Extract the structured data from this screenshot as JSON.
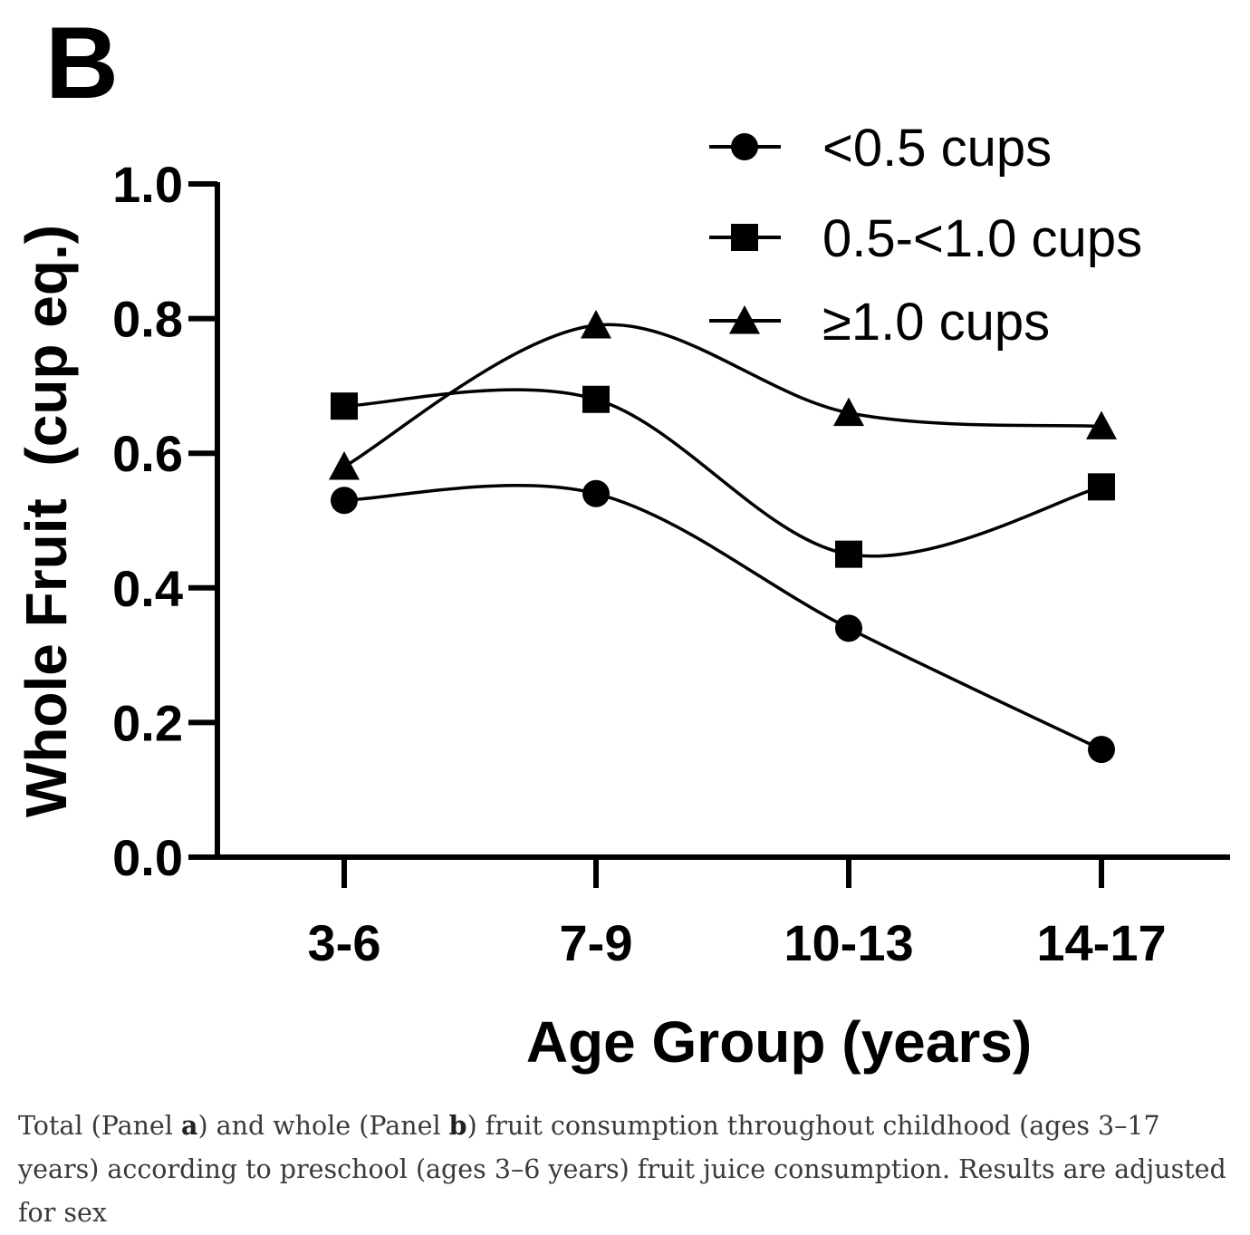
{
  "chart_data": {
    "type": "line",
    "panel_label": "B",
    "xlabel": "Age Group (years)",
    "ylabel": "Whole Fruit  (cup eq.)",
    "categories": [
      "3-6",
      "7-9",
      "10-13",
      "14-17"
    ],
    "ylim": [
      0,
      1.0
    ],
    "yticks": [
      "0.0",
      "0.2",
      "0.4",
      "0.6",
      "0.8",
      "1.0"
    ],
    "legend_position": "top-right",
    "series": [
      {
        "name": "<0.5 cups",
        "marker": "circle",
        "values": [
          0.53,
          0.54,
          0.34,
          0.16
        ]
      },
      {
        "name": "0.5-<1.0 cups",
        "marker": "square",
        "values": [
          0.67,
          0.68,
          0.45,
          0.55
        ]
      },
      {
        "name": "≥1.0 cups",
        "marker": "triangle",
        "values": [
          0.58,
          0.79,
          0.66,
          0.64
        ]
      }
    ]
  },
  "caption": {
    "part1": "Total (Panel ",
    "panel_a": "a",
    "part2": ") and whole (Panel ",
    "panel_b": "b",
    "part3": ") fruit consumption throughout childhood (ages 3–17 years) according to preschool (ages 3–6 years) fruit juice consumption. Results are adjusted for sex"
  }
}
